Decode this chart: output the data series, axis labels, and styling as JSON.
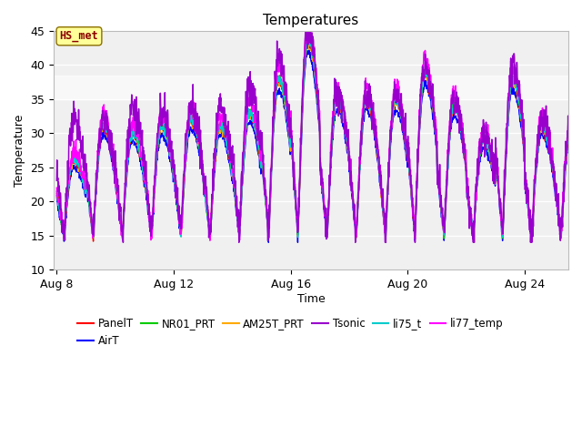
{
  "title": "Temperatures",
  "xlabel": "Time",
  "ylabel": "Temperature",
  "ylim": [
    10,
    45
  ],
  "yticks": [
    10,
    15,
    20,
    25,
    30,
    35,
    40,
    45
  ],
  "xlim_days": [
    7.9,
    25.5
  ],
  "xtick_positions": [
    8,
    12,
    16,
    20,
    24
  ],
  "xtick_labels": [
    "Aug 8",
    "Aug 12",
    "Aug 16",
    "Aug 20",
    "Aug 24"
  ],
  "annotation_label": "HS_met",
  "annotation_color": "#8B0000",
  "annotation_bg": "#FFFF99",
  "series_names": [
    "PanelT",
    "AirT",
    "NR01_PRT",
    "AM25T_PRT",
    "Tsonic",
    "li75_t",
    "li77_temp"
  ],
  "series_colors": [
    "#FF0000",
    "#0000FF",
    "#00CC00",
    "#FFaa00",
    "#9900CC",
    "#00CCCC",
    "#FF00FF"
  ],
  "shaded_band": [
    35.0,
    38.5
  ],
  "background_color": "#ffffff",
  "plot_bg_color": "#f0f0f0"
}
